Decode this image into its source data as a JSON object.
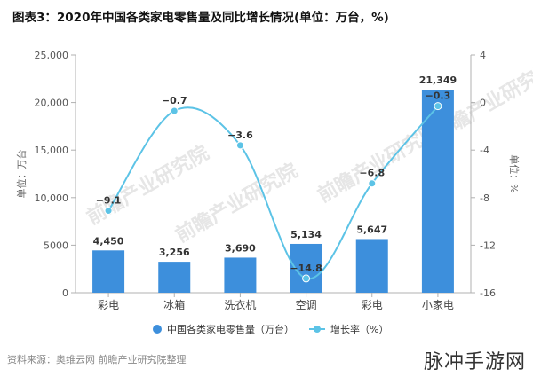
{
  "title": "图表3：2020年中国各类家电零售量及同比增长情况(单位：万台，%)",
  "source": "资料来源：奥维云网 前瞻产业研究院整理",
  "watermark": "前瞻产业研究院",
  "brand": "脉冲手游网",
  "chart_data": {
    "type": "bar",
    "categories": [
      "彩电",
      "冰箱",
      "洗衣机",
      "空调",
      "彩电",
      "小家电"
    ],
    "series": [
      {
        "name": "中国各类家电零售量（万台）",
        "type": "bar",
        "axis": "left",
        "color": "#3d8fdc",
        "values": [
          4450,
          3256,
          3690,
          5134,
          5647,
          21349
        ],
        "labels": [
          "4,450",
          "3,256",
          "3,690",
          "5,134",
          "5,647",
          "21,349"
        ]
      },
      {
        "name": "增长率（%）",
        "type": "line",
        "axis": "right",
        "color": "#5cc3e6",
        "values": [
          -9.1,
          -0.7,
          -3.6,
          -14.8,
          -6.8,
          -0.3
        ],
        "labels": [
          "−9.1",
          "−0.7",
          "−3.6",
          "−14.8",
          "−6.8",
          "−0.3"
        ]
      }
    ],
    "ylabel": "单位：万台",
    "y2label": "单位：%",
    "ylim": [
      0,
      25000
    ],
    "yticks": [
      "0",
      "5000",
      "10,000",
      "15,000",
      "20,000",
      "25,000"
    ],
    "y2lim": [
      -16,
      4
    ],
    "y2ticks": [
      "-16",
      "-12",
      "-8",
      "-4",
      "0",
      "4"
    ],
    "grid": false,
    "legend_position": "bottom"
  }
}
